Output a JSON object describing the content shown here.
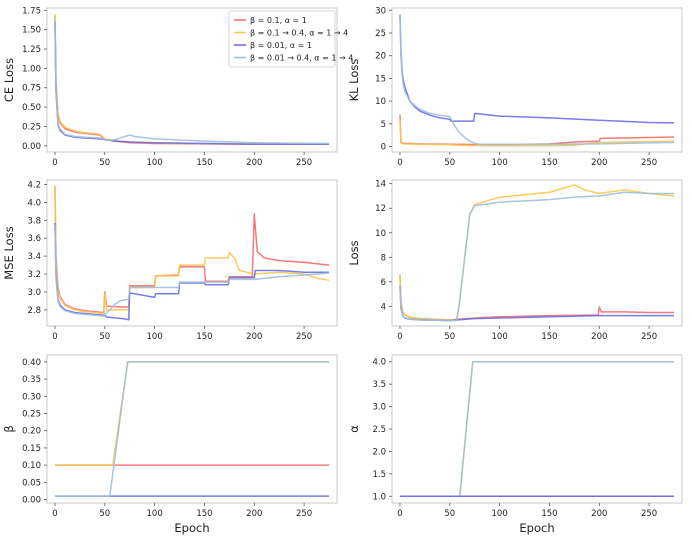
{
  "series": [
    {
      "name": "β = 0.1, α = 1",
      "color": "#f36b6b"
    },
    {
      "name": "β = 0.1 → 0.4, α = 1 → 4",
      "color": "#f9c74f"
    },
    {
      "name": "β = 0.01, α = 1",
      "color": "#6a6ee8"
    },
    {
      "name": "β = 0.01 → 0.4, α = 1 → 4",
      "color": "#9dbfdc"
    }
  ],
  "chart_data": [
    {
      "id": "ce-loss",
      "type": "line",
      "title": "",
      "xlabel": "",
      "ylabel": "CE Loss",
      "xlim": [
        -8,
        283
      ],
      "ylim": [
        -0.08,
        1.78
      ],
      "xticks": [
        0,
        50,
        100,
        150,
        200,
        250
      ],
      "yticks": [
        0.0,
        0.25,
        0.5,
        0.75,
        1.0,
        1.25,
        1.5,
        1.75
      ],
      "ytick_labels": [
        "0.00",
        "0.25",
        "0.50",
        "0.75",
        "1.00",
        "1.25",
        "1.50",
        "1.75"
      ],
      "legend": "top-right",
      "series": [
        {
          "name": "β = 0.1, α = 1",
          "color": "#f36b6b",
          "x": [
            0,
            1,
            3,
            5,
            10,
            20,
            30,
            45,
            50,
            60,
            75,
            100,
            150,
            200,
            275
          ],
          "y": [
            1.68,
            0.85,
            0.4,
            0.3,
            0.22,
            0.18,
            0.16,
            0.14,
            0.08,
            0.06,
            0.04,
            0.03,
            0.025,
            0.02,
            0.02
          ]
        },
        {
          "name": "β = 0.1 → 0.4, α = 1 → 4",
          "color": "#f9c74f",
          "x": [
            0,
            1,
            3,
            5,
            10,
            20,
            30,
            45,
            50,
            60,
            75,
            100,
            150,
            200,
            275
          ],
          "y": [
            1.7,
            0.85,
            0.42,
            0.32,
            0.24,
            0.19,
            0.17,
            0.15,
            0.09,
            0.07,
            0.05,
            0.04,
            0.03,
            0.025,
            0.02
          ]
        },
        {
          "name": "β = 0.01, α = 1",
          "color": "#6a6ee8",
          "x": [
            0,
            1,
            3,
            5,
            10,
            20,
            30,
            45,
            50,
            60,
            75,
            100,
            150,
            200,
            275
          ],
          "y": [
            1.6,
            0.7,
            0.28,
            0.2,
            0.14,
            0.11,
            0.1,
            0.09,
            0.08,
            0.06,
            0.05,
            0.04,
            0.03,
            0.02,
            0.02
          ]
        },
        {
          "name": "β = 0.01 → 0.4, α = 1 → 4",
          "color": "#9dbfdc",
          "x": [
            0,
            1,
            3,
            5,
            10,
            20,
            30,
            45,
            50,
            55,
            60,
            65,
            70,
            75,
            80,
            100,
            150,
            200,
            275
          ],
          "y": [
            1.62,
            0.72,
            0.3,
            0.22,
            0.15,
            0.12,
            0.11,
            0.1,
            0.085,
            0.07,
            0.08,
            0.1,
            0.12,
            0.14,
            0.12,
            0.09,
            0.06,
            0.04,
            0.03
          ]
        }
      ]
    },
    {
      "id": "kl-loss",
      "type": "line",
      "title": "",
      "xlabel": "",
      "ylabel": "KL Loss",
      "xlim": [
        -8,
        283
      ],
      "ylim": [
        -1.2,
        30.5
      ],
      "xticks": [
        0,
        50,
        100,
        150,
        200,
        250
      ],
      "yticks": [
        0,
        5,
        10,
        15,
        20,
        25,
        30
      ],
      "ytick_labels": [
        "0",
        "5",
        "10",
        "15",
        "20",
        "25",
        "30"
      ],
      "series": [
        {
          "name": "β = 0.1, α = 1",
          "color": "#f36b6b",
          "x": [
            0,
            1,
            3,
            5,
            20,
            50,
            100,
            150,
            175,
            200,
            201,
            250,
            275
          ],
          "y": [
            7.0,
            1.0,
            0.7,
            0.7,
            0.6,
            0.5,
            0.4,
            0.6,
            1.0,
            1.2,
            1.8,
            2.0,
            2.1
          ]
        },
        {
          "name": "β = 0.1 → 0.4, α = 1 → 4",
          "color": "#f9c74f",
          "x": [
            0,
            1,
            3,
            5,
            20,
            50,
            60,
            75,
            100,
            150,
            175,
            200,
            250,
            275
          ],
          "y": [
            6.0,
            0.9,
            0.6,
            0.6,
            0.5,
            0.4,
            0.3,
            0.2,
            0.2,
            0.2,
            0.3,
            0.9,
            1.1,
            1.2
          ]
        },
        {
          "name": "β = 0.01, α = 1",
          "color": "#6a6ee8",
          "x": [
            0,
            1,
            2,
            3,
            5,
            10,
            15,
            20,
            30,
            40,
            50,
            51,
            74,
            75,
            100,
            150,
            200,
            250,
            275
          ],
          "y": [
            29.0,
            21.0,
            17.0,
            15.0,
            13.0,
            10.0,
            8.7,
            7.8,
            6.9,
            6.3,
            6.0,
            5.6,
            5.6,
            7.3,
            6.7,
            6.3,
            5.8,
            5.3,
            5.2
          ]
        },
        {
          "name": "β = 0.01 → 0.4, α = 1 → 4",
          "color": "#9dbfdc",
          "x": [
            0,
            1,
            2,
            3,
            5,
            10,
            15,
            20,
            30,
            40,
            50,
            55,
            60,
            65,
            70,
            75,
            80,
            100,
            150,
            200,
            250,
            275
          ],
          "y": [
            29.0,
            20.0,
            16.0,
            14.0,
            12.0,
            10.0,
            9.0,
            8.2,
            7.3,
            6.9,
            6.6,
            4.5,
            3.0,
            2.0,
            1.2,
            0.7,
            0.5,
            0.5,
            0.5,
            0.6,
            0.8,
            0.9
          ]
        }
      ]
    },
    {
      "id": "mse-loss",
      "type": "line",
      "title": "",
      "xlabel": "",
      "ylabel": "MSE Loss",
      "xlim": [
        -8,
        283
      ],
      "ylim": [
        2.62,
        4.25
      ],
      "xticks": [
        0,
        50,
        100,
        150,
        200,
        250
      ],
      "yticks": [
        2.8,
        3.0,
        3.2,
        3.4,
        3.6,
        3.8,
        4.0,
        4.2
      ],
      "ytick_labels": [
        "2.8",
        "3.0",
        "3.2",
        "3.4",
        "3.6",
        "3.8",
        "4.0",
        "4.2"
      ],
      "series": [
        {
          "name": "β = 0.1, α = 1",
          "color": "#f36b6b",
          "x": [
            0,
            1,
            3,
            5,
            10,
            20,
            30,
            40,
            49,
            50,
            52,
            74,
            75,
            100,
            101,
            124,
            125,
            150,
            151,
            174,
            175,
            198,
            200,
            203,
            210,
            225,
            250,
            275
          ],
          "y": [
            4.18,
            3.4,
            3.05,
            2.95,
            2.86,
            2.81,
            2.79,
            2.78,
            2.77,
            3.0,
            2.84,
            2.83,
            3.07,
            3.07,
            3.18,
            3.19,
            3.28,
            3.28,
            3.12,
            3.12,
            3.17,
            3.17,
            3.87,
            3.45,
            3.38,
            3.35,
            3.33,
            3.3
          ]
        },
        {
          "name": "β = 0.1 → 0.4, α = 1 → 4",
          "color": "#f9c74f",
          "x": [
            0,
            1,
            3,
            5,
            10,
            20,
            30,
            40,
            49,
            50,
            52,
            74,
            75,
            100,
            101,
            124,
            125,
            150,
            151,
            174,
            175,
            180,
            185,
            200,
            225,
            250,
            265,
            275
          ],
          "y": [
            4.18,
            3.35,
            3.02,
            2.93,
            2.85,
            2.8,
            2.78,
            2.77,
            2.76,
            2.98,
            2.8,
            2.8,
            3.05,
            3.05,
            3.18,
            3.18,
            3.3,
            3.3,
            3.38,
            3.38,
            3.44,
            3.38,
            3.24,
            3.2,
            3.22,
            3.2,
            3.15,
            3.13
          ]
        },
        {
          "name": "β = 0.01, α = 1",
          "color": "#6a6ee8",
          "x": [
            0,
            1,
            3,
            5,
            10,
            20,
            30,
            40,
            49,
            50,
            52,
            70,
            74,
            75,
            100,
            101,
            124,
            125,
            150,
            151,
            174,
            175,
            200,
            201,
            225,
            250,
            275
          ],
          "y": [
            3.77,
            3.2,
            2.92,
            2.86,
            2.8,
            2.77,
            2.76,
            2.75,
            2.74,
            2.74,
            2.72,
            2.7,
            2.69,
            2.99,
            2.94,
            2.98,
            2.98,
            3.1,
            3.1,
            3.08,
            3.08,
            3.16,
            3.16,
            3.24,
            3.24,
            3.22,
            3.22
          ]
        },
        {
          "name": "β = 0.01 → 0.4, α = 1 → 4",
          "color": "#9dbfdc",
          "x": [
            0,
            1,
            3,
            5,
            10,
            20,
            30,
            40,
            49,
            50,
            55,
            60,
            65,
            74,
            75,
            100,
            101,
            124,
            125,
            150,
            151,
            174,
            175,
            200,
            225,
            250,
            275
          ],
          "y": [
            3.75,
            3.15,
            2.9,
            2.84,
            2.79,
            2.76,
            2.75,
            2.74,
            2.73,
            2.75,
            2.8,
            2.86,
            2.9,
            2.92,
            3.05,
            3.05,
            3.05,
            3.05,
            3.11,
            3.11,
            3.11,
            3.11,
            3.14,
            3.14,
            3.17,
            3.19,
            3.21
          ]
        }
      ]
    },
    {
      "id": "total-loss",
      "type": "line",
      "title": "",
      "xlabel": "",
      "ylabel": "Loss",
      "xlim": [
        -8,
        283
      ],
      "ylim": [
        2.4,
        14.3
      ],
      "xticks": [
        0,
        50,
        100,
        150,
        200,
        250
      ],
      "yticks": [
        4,
        6,
        8,
        10,
        12,
        14
      ],
      "ytick_labels": [
        "4",
        "6",
        "8",
        "10",
        "12",
        "14"
      ],
      "series": [
        {
          "name": "β = 0.1, α = 1",
          "color": "#f36b6b",
          "x": [
            0,
            1,
            3,
            5,
            10,
            20,
            30,
            50,
            75,
            100,
            150,
            199,
            200,
            202,
            225,
            250,
            275
          ],
          "y": [
            6.6,
            4.3,
            3.5,
            3.3,
            3.1,
            3.0,
            2.95,
            2.9,
            3.05,
            3.15,
            3.25,
            3.3,
            3.95,
            3.55,
            3.55,
            3.5,
            3.5
          ]
        },
        {
          "name": "β = 0.1 → 0.4, α = 1 → 4",
          "color": "#f9c74f",
          "x": [
            0,
            1,
            3,
            5,
            10,
            20,
            30,
            50,
            57,
            60,
            65,
            70,
            75,
            100,
            125,
            150,
            175,
            185,
            200,
            225,
            250,
            275
          ],
          "y": [
            6.6,
            4.3,
            3.5,
            3.3,
            3.1,
            3.0,
            2.95,
            2.9,
            2.9,
            4.5,
            8.0,
            11.5,
            12.3,
            12.9,
            13.1,
            13.3,
            13.9,
            13.5,
            13.2,
            13.5,
            13.2,
            13.0
          ]
        },
        {
          "name": "β = 0.01, α = 1",
          "color": "#6a6ee8",
          "x": [
            0,
            1,
            3,
            5,
            10,
            20,
            30,
            50,
            75,
            100,
            150,
            200,
            250,
            275
          ],
          "y": [
            5.7,
            3.8,
            3.2,
            3.05,
            2.95,
            2.9,
            2.88,
            2.85,
            3.0,
            3.05,
            3.15,
            3.25,
            3.25,
            3.25
          ]
        },
        {
          "name": "β = 0.01 → 0.4, α = 1 → 4",
          "color": "#9dbfdc",
          "x": [
            0,
            1,
            3,
            5,
            10,
            20,
            30,
            50,
            57,
            60,
            65,
            70,
            75,
            100,
            125,
            150,
            175,
            200,
            225,
            250,
            275
          ],
          "y": [
            5.7,
            3.8,
            3.2,
            3.05,
            2.95,
            2.9,
            2.88,
            2.85,
            2.85,
            4.5,
            8.0,
            11.5,
            12.2,
            12.5,
            12.6,
            12.7,
            12.9,
            13.0,
            13.3,
            13.2,
            13.2
          ]
        }
      ]
    },
    {
      "id": "beta",
      "type": "line",
      "title": "",
      "xlabel": "Epoch",
      "ylabel": "β",
      "xlim": [
        -8,
        283
      ],
      "ylim": [
        -0.01,
        0.42
      ],
      "xticks": [
        0,
        50,
        100,
        150,
        200,
        250
      ],
      "yticks": [
        0.0,
        0.05,
        0.1,
        0.15,
        0.2,
        0.25,
        0.3,
        0.35,
        0.4
      ],
      "ytick_labels": [
        "0.00",
        "0.05",
        "0.10",
        "0.15",
        "0.20",
        "0.25",
        "0.30",
        "0.35",
        "0.40"
      ],
      "series": [
        {
          "name": "β = 0.1, α = 1",
          "color": "#f36b6b",
          "x": [
            0,
            275
          ],
          "y": [
            0.1,
            0.1
          ]
        },
        {
          "name": "β = 0.1 → 0.4, α = 1 → 4",
          "color": "#f9c74f",
          "x": [
            0,
            58,
            73,
            275
          ],
          "y": [
            0.1,
            0.1,
            0.4,
            0.4
          ]
        },
        {
          "name": "β = 0.01, α = 1",
          "color": "#6a6ee8",
          "x": [
            0,
            275
          ],
          "y": [
            0.01,
            0.01
          ]
        },
        {
          "name": "β = 0.01 → 0.4, α = 1 → 4",
          "color": "#9dbfdc",
          "x": [
            0,
            55,
            73,
            275
          ],
          "y": [
            0.01,
            0.01,
            0.4,
            0.4
          ]
        }
      ]
    },
    {
      "id": "alpha",
      "type": "line",
      "title": "",
      "xlabel": "Epoch",
      "ylabel": "α",
      "xlim": [
        -8,
        283
      ],
      "ylim": [
        0.85,
        4.15
      ],
      "xticks": [
        0,
        50,
        100,
        150,
        200,
        250
      ],
      "yticks": [
        1.0,
        1.5,
        2.0,
        2.5,
        3.0,
        3.5,
        4.0
      ],
      "ytick_labels": [
        "1.0",
        "1.5",
        "2.0",
        "2.5",
        "3.0",
        "3.5",
        "4.0"
      ],
      "series": [
        {
          "name": "β = 0.1, α = 1",
          "color": "#f36b6b",
          "x": [
            0,
            275
          ],
          "y": [
            1.0,
            1.0
          ]
        },
        {
          "name": "β = 0.1 → 0.4, α = 1 → 4",
          "color": "#f9c74f",
          "x": [
            0,
            60,
            73,
            275
          ],
          "y": [
            1.0,
            1.0,
            4.0,
            4.0
          ]
        },
        {
          "name": "β = 0.01 → 0.4, α = 1 → 4",
          "color": "#9dbfdc",
          "x": [
            0,
            60,
            73,
            275
          ],
          "y": [
            1.0,
            1.0,
            4.0,
            4.0
          ]
        },
        {
          "name": "β = 0.01, α = 1",
          "color": "#6a6ee8",
          "x": [
            0,
            275
          ],
          "y": [
            1.0,
            1.0
          ]
        }
      ]
    }
  ]
}
